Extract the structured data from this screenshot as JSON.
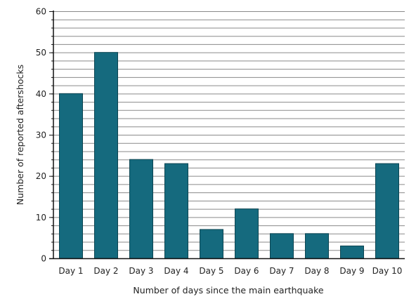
{
  "chart_data": {
    "type": "bar",
    "categories": [
      "Day 1",
      "Day 2",
      "Day 3",
      "Day 4",
      "Day 5",
      "Day 6",
      "Day 7",
      "Day 8",
      "Day 9",
      "Day 10"
    ],
    "values": [
      40,
      50,
      24,
      23,
      7,
      12,
      6,
      6,
      3,
      23
    ],
    "title": "",
    "xlabel": "Number of days since the main earthquake",
    "ylabel": "Number of reported aftershocks",
    "ylim": [
      0,
      60
    ],
    "yticks": [
      0,
      10,
      20,
      30,
      40,
      50,
      60
    ],
    "minor_step": 2,
    "grid": true,
    "bar_color": "#156a7e"
  }
}
